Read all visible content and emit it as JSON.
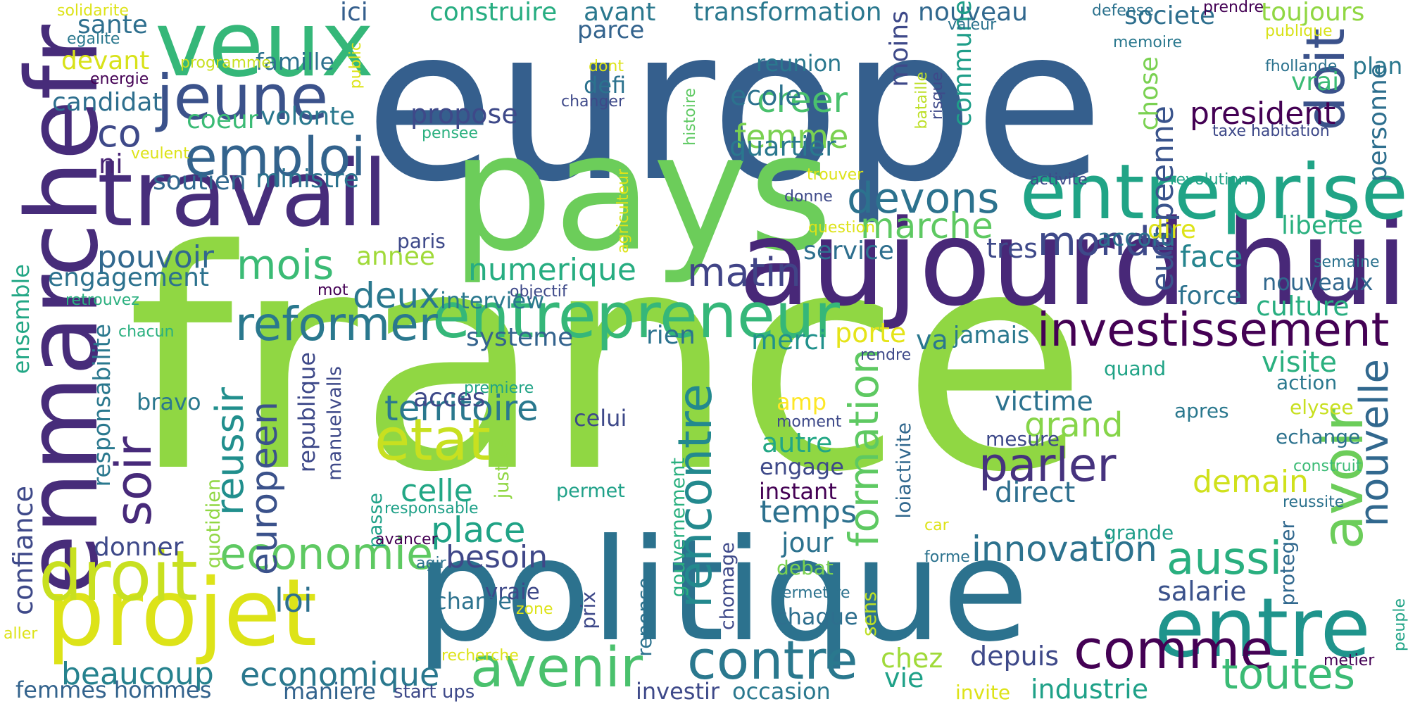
{
  "words": [
    {
      "text": "france",
      "color": "#90d743"
    },
    {
      "text": "europe",
      "color": "#355f8d"
    },
    {
      "text": "pays",
      "color": "#6ccd5a"
    },
    {
      "text": "politique",
      "color": "#2c728e"
    },
    {
      "text": "aujourd hui",
      "color": "#482878"
    },
    {
      "text": "travail",
      "color": "#472d7b"
    },
    {
      "text": "enmarchefr",
      "color": "#472c7a"
    },
    {
      "text": "veux",
      "color": "#35b779"
    },
    {
      "text": "projet",
      "color": "#dde318"
    },
    {
      "text": "entreprise",
      "color": "#20a486"
    },
    {
      "text": "entrepreneur",
      "color": "#35b779"
    },
    {
      "text": "entre",
      "color": "#1f948c"
    },
    {
      "text": "jeune",
      "color": "#3b528b"
    },
    {
      "text": "droit",
      "color": "#c8e020"
    },
    {
      "text": "avenir",
      "color": "#4ac16d"
    },
    {
      "text": "contre",
      "color": "#2a788e"
    },
    {
      "text": "comme",
      "color": "#440154"
    },
    {
      "text": "doit",
      "color": "#3b528b"
    },
    {
      "text": "avoir",
      "color": "#6ccd5a"
    },
    {
      "text": "etat",
      "color": "#c8e020"
    },
    {
      "text": "emploi",
      "color": "#33638d"
    },
    {
      "text": "investissement",
      "color": "#440154"
    },
    {
      "text": "nouvelle",
      "color": "#31688e"
    },
    {
      "text": "reformer",
      "color": "#2a788e"
    },
    {
      "text": "economie",
      "color": "#5ec962"
    },
    {
      "text": "soir",
      "color": "#472a7a"
    },
    {
      "text": "reussir",
      "color": "#218f8d"
    },
    {
      "text": "parler",
      "color": "#46337e"
    },
    {
      "text": "aussi",
      "color": "#29af7f"
    },
    {
      "text": "toutes",
      "color": "#3bbb75"
    },
    {
      "text": "rencontre",
      "color": "#23898e"
    },
    {
      "text": "europeen",
      "color": "#3b528b"
    },
    {
      "text": "formation",
      "color": "#5ec962"
    },
    {
      "text": "devons",
      "color": "#2c728e"
    },
    {
      "text": "monde",
      "color": "#3e4989"
    },
    {
      "text": "matin",
      "color": "#414487"
    },
    {
      "text": "mois",
      "color": "#3bbb75"
    },
    {
      "text": "marche",
      "color": "#5ec962"
    },
    {
      "text": "co",
      "color": "#3e4989"
    },
    {
      "text": "territoire",
      "color": "#2a788e"
    },
    {
      "text": "innovation",
      "color": "#2c728e"
    },
    {
      "text": "economique",
      "color": "#2a788e"
    },
    {
      "text": "place",
      "color": "#20a386"
    },
    {
      "text": "beaucoup",
      "color": "#26828e"
    },
    {
      "text": "loi",
      "color": "#2d708e"
    },
    {
      "text": "president",
      "color": "#440154"
    },
    {
      "text": "europeenne",
      "color": "#3a548c"
    },
    {
      "text": "culture",
      "color": "#28ae80"
    },
    {
      "text": "creer",
      "color": "#4ac16d"
    },
    {
      "text": "femme",
      "color": "#7ad151"
    },
    {
      "text": "demain",
      "color": "#d0e11c"
    },
    {
      "text": "direct",
      "color": "#2e6f8e"
    },
    {
      "text": "visite",
      "color": "#2ab07f"
    },
    {
      "text": "industrie",
      "color": "#1fa188"
    },
    {
      "text": "grand",
      "color": "#86d549"
    },
    {
      "text": "temps",
      "color": "#2d718e"
    },
    {
      "text": "celle",
      "color": "#22a785"
    },
    {
      "text": "besoin",
      "color": "#3f4788"
    },
    {
      "text": "depuis",
      "color": "#3e4989"
    },
    {
      "text": "victime",
      "color": "#2c728e"
    },
    {
      "text": "merci",
      "color": "#21918c"
    },
    {
      "text": "jour",
      "color": "#2c728e"
    },
    {
      "text": "porte",
      "color": "#e5e419"
    },
    {
      "text": "face",
      "color": "#25848e"
    },
    {
      "text": "salarie",
      "color": "#3b528b"
    },
    {
      "text": "numerique",
      "color": "#27ad81"
    },
    {
      "text": "pouvoir",
      "color": "#31688e"
    },
    {
      "text": "propose",
      "color": "#3e4989"
    },
    {
      "text": "systeme",
      "color": "#33638d"
    },
    {
      "text": "deux",
      "color": "#2a788e"
    },
    {
      "text": "ecole",
      "color": "#2c728e"
    },
    {
      "text": "quartier",
      "color": "#2a788e"
    },
    {
      "text": "force",
      "color": "#2c728e"
    },
    {
      "text": "autre",
      "color": "#22a785"
    },
    {
      "text": "annee",
      "color": "#a0da39"
    },
    {
      "text": "monde",
      "color": "#3e4989"
    },
    {
      "text": "chez",
      "color": "#a0da39"
    },
    {
      "text": "vie",
      "color": "#1fa188"
    },
    {
      "text": "rien",
      "color": "#2c728e"
    },
    {
      "text": "jamais",
      "color": "#2a788e"
    },
    {
      "text": "service",
      "color": "#2e6f8e"
    },
    {
      "text": "va",
      "color": "#2a788e"
    },
    {
      "text": "tres",
      "color": "#3e4989"
    },
    {
      "text": "nouveaux",
      "color": "#31688e"
    },
    {
      "text": "ministre",
      "color": "#2c728e"
    },
    {
      "text": "soutien",
      "color": "#31688e"
    },
    {
      "text": "engagement",
      "color": "#2c728e"
    },
    {
      "text": "ni",
      "color": "#482475"
    },
    {
      "text": "famille",
      "color": "#2d708e"
    },
    {
      "text": "coeur",
      "color": "#3bbb75"
    },
    {
      "text": "volonte",
      "color": "#2a788e"
    },
    {
      "text": "candidat",
      "color": "#2e6f8e"
    },
    {
      "text": "devant",
      "color": "#d8e219"
    },
    {
      "text": "sante",
      "color": "#2e6f8e"
    },
    {
      "text": "ici",
      "color": "#355f8d"
    },
    {
      "text": "construire",
      "color": "#27ad81"
    },
    {
      "text": "avant",
      "color": "#2a788e"
    },
    {
      "text": "parce",
      "color": "#33638d"
    },
    {
      "text": "transformation",
      "color": "#2a788e"
    },
    {
      "text": "nouveau",
      "color": "#31688e"
    },
    {
      "text": "societe",
      "color": "#2e6f8e"
    },
    {
      "text": "toujours",
      "color": "#90d743"
    },
    {
      "text": "reunion",
      "color": "#2a788e"
    },
    {
      "text": "defi",
      "color": "#2c728e"
    },
    {
      "text": "moins",
      "color": "#3e4989"
    },
    {
      "text": "commune",
      "color": "#1f9e89"
    },
    {
      "text": "vrai",
      "color": "#3bbb75"
    },
    {
      "text": "plan",
      "color": "#2a788e"
    },
    {
      "text": "chose",
      "color": "#7ad151"
    },
    {
      "text": "personne",
      "color": "#2e6f8e"
    },
    {
      "text": "liberte",
      "color": "#2ab07f"
    },
    {
      "text": "accord",
      "color": "#2c728e"
    },
    {
      "text": "dire",
      "color": "#dde318"
    },
    {
      "text": "paris",
      "color": "#3e4989"
    },
    {
      "text": "interview",
      "color": "#2a788e"
    },
    {
      "text": "acces",
      "color": "#3e4989"
    },
    {
      "text": "responsabilite",
      "color": "#2a788e"
    },
    {
      "text": "republique",
      "color": "#3e4989"
    },
    {
      "text": "ensemble",
      "color": "#22a785"
    },
    {
      "text": "confiance",
      "color": "#3e4989"
    },
    {
      "text": "bravo",
      "color": "#2a788e"
    },
    {
      "text": "donner",
      "color": "#3e4989"
    },
    {
      "text": "vraie",
      "color": "#3e4989"
    },
    {
      "text": "charge",
      "color": "#2c728e"
    },
    {
      "text": "femmes hommes",
      "color": "#33638d"
    },
    {
      "text": "maniere",
      "color": "#33638d"
    },
    {
      "text": "investir",
      "color": "#3e4989"
    },
    {
      "text": "occasion",
      "color": "#2a788e"
    },
    {
      "text": "start ups",
      "color": "#3e4989"
    },
    {
      "text": "invite",
      "color": "#dde318"
    },
    {
      "text": "celui",
      "color": "#3e4989"
    },
    {
      "text": "amp",
      "color": "#fde725"
    },
    {
      "text": "engage",
      "color": "#3e4989"
    },
    {
      "text": "instant",
      "color": "#440154"
    },
    {
      "text": "chaque",
      "color": "#2e6f8e"
    },
    {
      "text": "debat",
      "color": "#7ad151"
    },
    {
      "text": "permet",
      "color": "#1fa188"
    },
    {
      "text": "justice",
      "color": "#90d743"
    },
    {
      "text": "quotidien",
      "color": "#90d743"
    },
    {
      "text": "manuelvalls",
      "color": "#3e4989"
    },
    {
      "text": "passe",
      "color": "#1fa188"
    },
    {
      "text": "gouvernement",
      "color": "#2ab07f"
    },
    {
      "text": "chomage",
      "color": "#3e4989"
    },
    {
      "text": "prix",
      "color": "#3e4989"
    },
    {
      "text": "reponse",
      "color": "#2c728e"
    },
    {
      "text": "sens",
      "color": "#bddf26"
    },
    {
      "text": "loiactivite",
      "color": "#31688e"
    },
    {
      "text": "mesure",
      "color": "#3e4989"
    },
    {
      "text": "action",
      "color": "#2a788e"
    },
    {
      "text": "elysee",
      "color": "#c8e020"
    },
    {
      "text": "echange",
      "color": "#2c728e"
    },
    {
      "text": "apres",
      "color": "#2a788e"
    },
    {
      "text": "quand",
      "color": "#20a386"
    },
    {
      "text": "grande",
      "color": "#1f9e89"
    },
    {
      "text": "proteger",
      "color": "#31688e"
    },
    {
      "text": "peuple",
      "color": "#20a386"
    },
    {
      "text": "metier",
      "color": "#440154"
    },
    {
      "text": "valeur",
      "color": "#2c728e"
    },
    {
      "text": "defense",
      "color": "#2c728e"
    },
    {
      "text": "prendre",
      "color": "#440154"
    },
    {
      "text": "publique",
      "color": "#d8e219"
    },
    {
      "text": "memoire",
      "color": "#2a788e"
    },
    {
      "text": "fhollande",
      "color": "#2c728e"
    },
    {
      "text": "taxe habitation",
      "color": "#3e4989"
    },
    {
      "text": "activite",
      "color": "#3e4989"
    },
    {
      "text": "revolution",
      "color": "#20a386"
    },
    {
      "text": "semaine",
      "color": "#2c728e"
    },
    {
      "text": "construit",
      "color": "#3bbb75"
    },
    {
      "text": "reussite",
      "color": "#2c728e"
    },
    {
      "text": "solidarite",
      "color": "#dde318"
    },
    {
      "text": "egalite",
      "color": "#2a788e"
    },
    {
      "text": "energie",
      "color": "#440154"
    },
    {
      "text": "programme",
      "color": "#c8e020"
    },
    {
      "text": "public",
      "color": "#dde318"
    },
    {
      "text": "veulent",
      "color": "#dde318"
    },
    {
      "text": "histoire",
      "color": "#5ec962"
    },
    {
      "text": "agriculteur",
      "color": "#dde318"
    },
    {
      "text": "dont",
      "color": "#dde318"
    },
    {
      "text": "changer",
      "color": "#3e4989"
    },
    {
      "text": "pensee",
      "color": "#2ab07f"
    },
    {
      "text": "bataille",
      "color": "#bddf26"
    },
    {
      "text": "risque",
      "color": "#3e4989"
    },
    {
      "text": "trouver",
      "color": "#dde318"
    },
    {
      "text": "donne",
      "color": "#3e4989"
    },
    {
      "text": "question",
      "color": "#dde318"
    },
    {
      "text": "objectif",
      "color": "#3e4989"
    },
    {
      "text": "retrouvez",
      "color": "#2ab07f"
    },
    {
      "text": "mot",
      "color": "#440154"
    },
    {
      "text": "chacun",
      "color": "#2ab07f"
    },
    {
      "text": "premiere",
      "color": "#20a386"
    },
    {
      "text": "moment",
      "color": "#3e4989"
    },
    {
      "text": "rendre",
      "color": "#3e4989"
    },
    {
      "text": "responsable",
      "color": "#1fa188"
    },
    {
      "text": "avancer",
      "color": "#440154"
    },
    {
      "text": "agir",
      "color": "#2c728e"
    },
    {
      "text": "zone",
      "color": "#dde318"
    },
    {
      "text": "recherche",
      "color": "#dde318"
    },
    {
      "text": "car",
      "color": "#dde318"
    },
    {
      "text": "forme",
      "color": "#2c728e"
    },
    {
      "text": "permettre",
      "color": "#2c728e"
    },
    {
      "text": "aller",
      "color": "#dde318"
    }
  ]
}
